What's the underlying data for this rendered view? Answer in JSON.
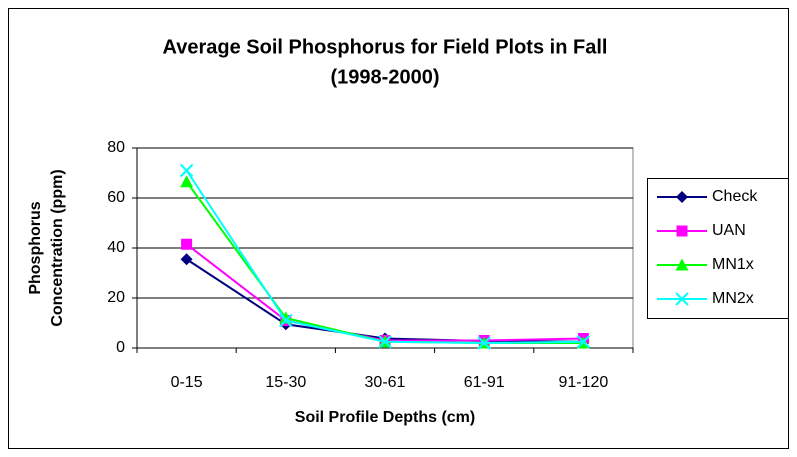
{
  "chart_data": {
    "type": "line",
    "title_lines": [
      "Average Soil Phosphorus for Field Plots in Fall",
      "(1998-2000)"
    ],
    "y_label_lines": [
      "Phosphorus",
      "Concentration (ppm)"
    ],
    "x_label": "Soil Profile Depths (cm)",
    "categories": [
      "0-15",
      "15-30",
      "30-61",
      "61-91",
      "91-120"
    ],
    "series": [
      {
        "name": "Check",
        "color": "#000080",
        "marker": "diamond",
        "values": [
          35.5,
          9.5,
          3.8,
          2.8,
          2.5
        ]
      },
      {
        "name": "UAN",
        "color": "#ff00ff",
        "marker": "square",
        "values": [
          41.5,
          11,
          3,
          3,
          3.8
        ]
      },
      {
        "name": "MN1x",
        "color": "#00ff00",
        "marker": "triangle",
        "values": [
          66.5,
          12,
          2.5,
          2,
          2
        ]
      },
      {
        "name": "MN2x",
        "color": "#00ffff",
        "marker": "x",
        "values": [
          71,
          11,
          2.5,
          2,
          2.5
        ]
      }
    ],
    "ylim": [
      0,
      80
    ],
    "yticks": [
      0,
      20,
      40,
      60,
      80
    ],
    "grid": true,
    "legend": "right"
  }
}
